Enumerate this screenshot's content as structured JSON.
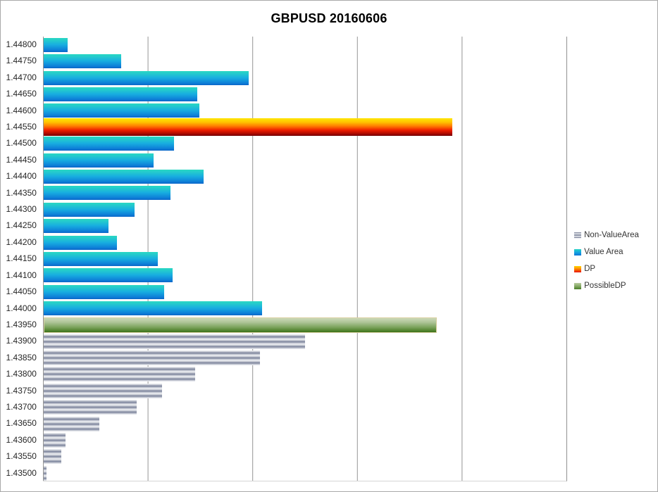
{
  "window": {
    "background": "#ffffff",
    "border_color": "#a9a9a9",
    "gridline_color": "#949494",
    "bottom_edge_color": "#d6d6d6"
  },
  "chart_data": {
    "type": "bar",
    "orientation": "horizontal",
    "title": "GBPUSD 20160606",
    "xlabel": "",
    "ylabel": "",
    "xlim": [
      0,
      5
    ],
    "x_tick_labels_visible": false,
    "gridlines": "vertical, 5 divisions, 1 unit apart",
    "value_units": "estimated from vertical gridline spacing (1 division = 1 unit)",
    "categories": [
      "1.44800",
      "1.44750",
      "1.44700",
      "1.44650",
      "1.44600",
      "1.44550",
      "1.44500",
      "1.44450",
      "1.44400",
      "1.44350",
      "1.44300",
      "1.44250",
      "1.44200",
      "1.44150",
      "1.44100",
      "1.44050",
      "1.44000",
      "1.43950",
      "1.43900",
      "1.43850",
      "1.43800",
      "1.43750",
      "1.43700",
      "1.43650",
      "1.43600",
      "1.43550",
      "1.43500"
    ],
    "bars": [
      {
        "price": "1.44800",
        "value": 0.23,
        "series": "Value Area"
      },
      {
        "price": "1.44750",
        "value": 0.74,
        "series": "Value Area"
      },
      {
        "price": "1.44700",
        "value": 1.96,
        "series": "Value Area"
      },
      {
        "price": "1.44650",
        "value": 1.47,
        "series": "Value Area"
      },
      {
        "price": "1.44600",
        "value": 1.49,
        "series": "Value Area"
      },
      {
        "price": "1.44550",
        "value": 3.91,
        "series": "DP"
      },
      {
        "price": "1.44500",
        "value": 1.25,
        "series": "Value Area"
      },
      {
        "price": "1.44450",
        "value": 1.05,
        "series": "Value Area"
      },
      {
        "price": "1.44400",
        "value": 1.53,
        "series": "Value Area"
      },
      {
        "price": "1.44350",
        "value": 1.21,
        "series": "Value Area"
      },
      {
        "price": "1.44300",
        "value": 0.87,
        "series": "Value Area"
      },
      {
        "price": "1.44250",
        "value": 0.62,
        "series": "Value Area"
      },
      {
        "price": "1.44200",
        "value": 0.7,
        "series": "Value Area"
      },
      {
        "price": "1.44150",
        "value": 1.09,
        "series": "Value Area"
      },
      {
        "price": "1.44100",
        "value": 1.23,
        "series": "Value Area"
      },
      {
        "price": "1.44050",
        "value": 1.15,
        "series": "Value Area"
      },
      {
        "price": "1.44000",
        "value": 2.09,
        "series": "Value Area"
      },
      {
        "price": "1.43950",
        "value": 3.76,
        "series": "PossibleDP"
      },
      {
        "price": "1.43900",
        "value": 2.5,
        "series": "Non-ValueArea"
      },
      {
        "price": "1.43850",
        "value": 2.07,
        "series": "Non-ValueArea"
      },
      {
        "price": "1.43800",
        "value": 1.45,
        "series": "Non-ValueArea"
      },
      {
        "price": "1.43750",
        "value": 1.13,
        "series": "Non-ValueArea"
      },
      {
        "price": "1.43700",
        "value": 0.89,
        "series": "Non-ValueArea"
      },
      {
        "price": "1.43650",
        "value": 0.53,
        "series": "Non-ValueArea"
      },
      {
        "price": "1.43600",
        "value": 0.21,
        "series": "Non-ValueArea"
      },
      {
        "price": "1.43550",
        "value": 0.17,
        "series": "Non-ValueArea"
      },
      {
        "price": "1.43500",
        "value": 0.03,
        "series": "Non-ValueArea"
      }
    ],
    "legend_position": "right"
  },
  "legend": {
    "items": [
      {
        "label": "Non-ValueArea",
        "series": "Non-ValueArea"
      },
      {
        "label": "Value Area",
        "series": "Value Area"
      },
      {
        "label": "DP",
        "series": "DP"
      },
      {
        "label": "PossibleDP",
        "series": "PossibleDP"
      }
    ]
  },
  "colors": {
    "value_area_top": "#2ad8c3",
    "value_area_bottom": "#0b66c8",
    "dp_top": "#ffe600",
    "dp_bottom": "#6e0000",
    "possible_dp_top": "#ccd9b9",
    "possible_dp_bottom": "#3b701c",
    "possible_dp_border": "#d8cf9f",
    "non_value_area_light": "#f2f3f6",
    "non_value_area_dark": "#79819a",
    "title_text": "#000000",
    "axis_label_text": "#262626"
  }
}
